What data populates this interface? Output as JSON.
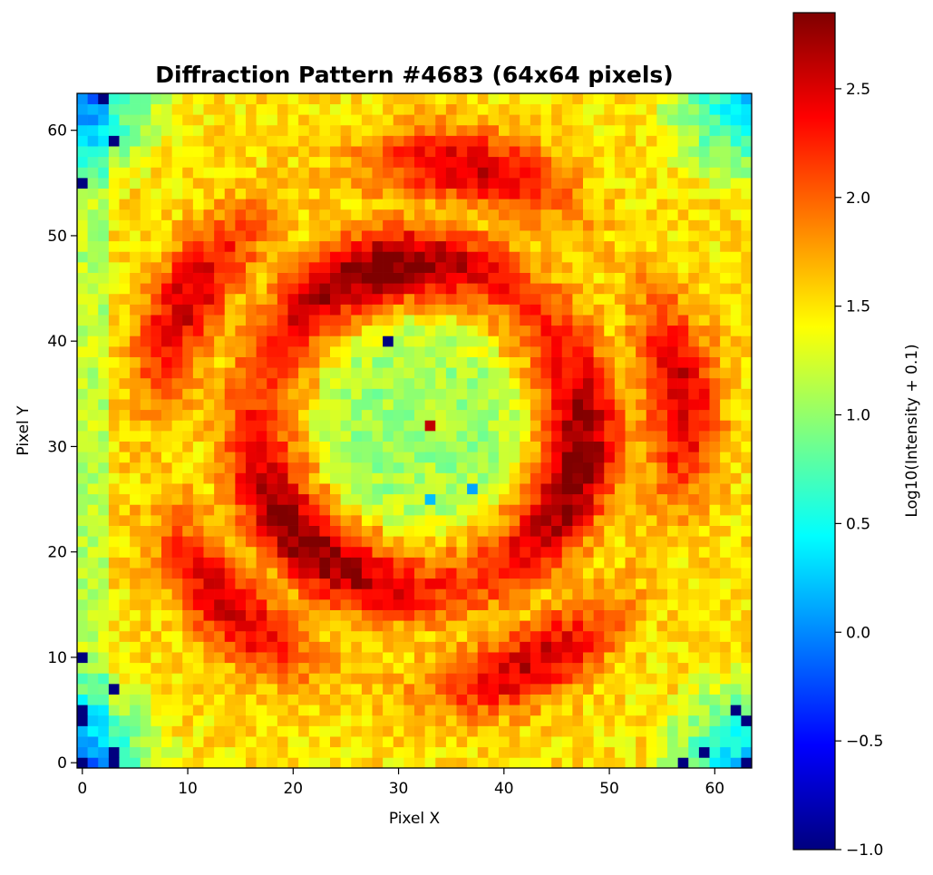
{
  "chart_data": {
    "type": "heatmap",
    "title": "Diffraction Pattern #4683 (64x64 pixels)",
    "xlabel": "Pixel X",
    "ylabel": "Pixel Y",
    "colorbar_label": "Log10(Intensity + 0.1)",
    "colormap": "jet",
    "colormap_stops": [
      "#00007f",
      "#0000ff",
      "#007fff",
      "#00ffff",
      "#7fff7f",
      "#ffff00",
      "#ff7f00",
      "#ff0000",
      "#7f0000"
    ],
    "grid_size": [
      64,
      64
    ],
    "xlim": [
      -0.5,
      63.5
    ],
    "ylim": [
      -0.5,
      63.5
    ],
    "clim": [
      -1.0,
      2.85
    ],
    "x_ticks": [
      0,
      10,
      20,
      30,
      40,
      50,
      60
    ],
    "y_ticks": [
      0,
      10,
      20,
      30,
      40,
      50,
      60
    ],
    "x_tick_labels": [
      "0",
      "10",
      "20",
      "30",
      "40",
      "50",
      "60"
    ],
    "y_tick_labels": [
      "0",
      "10",
      "20",
      "30",
      "40",
      "50",
      "60"
    ],
    "colorbar_ticks": [
      -1.0,
      -0.5,
      0.0,
      0.5,
      1.0,
      1.5,
      2.0,
      2.5
    ],
    "colorbar_tick_labels": [
      "−1.0",
      "−0.5",
      "0.0",
      "0.5",
      "1.0",
      "1.5",
      "2.0",
      "2.5"
    ],
    "pattern": {
      "description_values": "log10 intensity field approximating the rendered image",
      "center": [
        32,
        32
      ],
      "seed": 4683,
      "central_disk": {
        "radius": 10.5,
        "level": 1.05,
        "edge_level": 1.5
      },
      "center_peak": {
        "pixel": [
          33,
          32
        ],
        "value": 2.6
      },
      "ring": {
        "radius": 15.5,
        "level": 2.7,
        "width": 3.5
      },
      "outer_band": {
        "radius": 25,
        "level": 2.55,
        "width": 3.5
      },
      "petals": 5,
      "background_level": 1.5,
      "corner_level": 0.4,
      "noise_amplitude": 0.22,
      "low_pixels": [
        {
          "x": 29,
          "y": 40,
          "value": -1.0
        },
        {
          "x": 3,
          "y": 59,
          "value": -1.0
        },
        {
          "x": 2,
          "y": 63,
          "value": -1.0
        },
        {
          "x": 0,
          "y": 55,
          "value": -1.0
        },
        {
          "x": 37,
          "y": 26,
          "value": 0.1
        },
        {
          "x": 33,
          "y": 25,
          "value": 0.2
        },
        {
          "x": 0,
          "y": 10,
          "value": -1.0
        },
        {
          "x": 3,
          "y": 7,
          "value": -1.0
        },
        {
          "x": 0,
          "y": 5,
          "value": -1.0
        },
        {
          "x": 0,
          "y": 4,
          "value": -1.0
        },
        {
          "x": 3,
          "y": 1,
          "value": -1.0
        },
        {
          "x": 0,
          "y": 0,
          "value": -1.0
        },
        {
          "x": 3,
          "y": 0,
          "value": -1.0
        },
        {
          "x": 57,
          "y": 0,
          "value": -1.0
        },
        {
          "x": 59,
          "y": 1,
          "value": -1.0
        },
        {
          "x": 63,
          "y": 0,
          "value": -1.0
        },
        {
          "x": 63,
          "y": 4,
          "value": -1.0
        },
        {
          "x": 62,
          "y": 5,
          "value": -1.0
        }
      ]
    }
  }
}
